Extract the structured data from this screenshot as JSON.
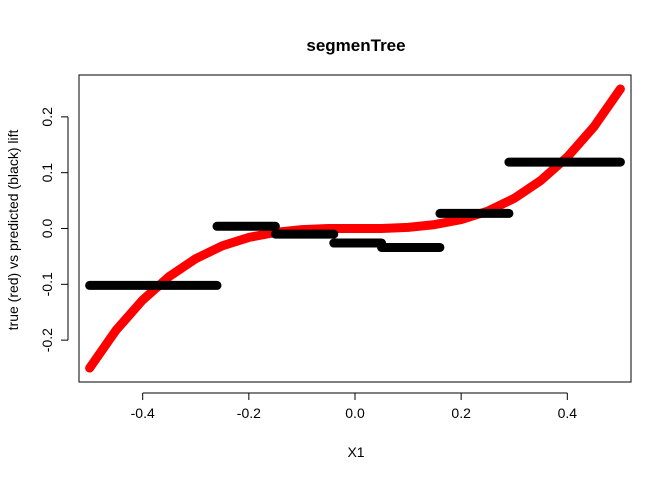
{
  "chart_data": {
    "type": "line",
    "title": "segmenTree",
    "xlabel": "X1",
    "ylabel": "true (red) vs predicted (black) lift",
    "xlim": [
      -0.52,
      0.52
    ],
    "ylim": [
      -0.275,
      0.275
    ],
    "x_ticks": [
      -0.4,
      -0.2,
      0.0,
      0.2,
      0.4
    ],
    "x_tick_labels": [
      "-0.4",
      "-0.2",
      "0.0",
      "0.2",
      "0.4"
    ],
    "y_ticks": [
      -0.2,
      -0.1,
      0.0,
      0.1,
      0.2
    ],
    "y_tick_labels": [
      "-0.2",
      "-0.1",
      "0.0",
      "0.1",
      "0.2"
    ],
    "grid": false,
    "legend": "none",
    "series": [
      {
        "color": "#ff0000",
        "x": [
          -0.5,
          -0.45,
          -0.4,
          -0.35,
          -0.3,
          -0.25,
          -0.2,
          -0.15,
          -0.1,
          -0.05,
          0.0,
          0.05,
          0.1,
          0.15,
          0.2,
          0.25,
          0.3,
          0.35,
          0.4,
          0.45,
          0.5
        ],
        "y": [
          -0.25,
          -0.182,
          -0.128,
          -0.086,
          -0.054,
          -0.031,
          -0.016,
          -0.007,
          -0.002,
          0.0,
          0.0,
          0.0,
          0.002,
          0.007,
          0.016,
          0.031,
          0.054,
          0.086,
          0.128,
          0.182,
          0.25
        ]
      }
    ],
    "segments": [
      {
        "color": "#000000",
        "x_start": -0.5,
        "x_end": -0.26,
        "y": -0.102
      },
      {
        "color": "#000000",
        "x_start": -0.26,
        "x_end": -0.15,
        "y": 0.004
      },
      {
        "color": "#000000",
        "x_start": -0.15,
        "x_end": -0.04,
        "y": -0.01
      },
      {
        "color": "#000000",
        "x_start": -0.04,
        "x_end": 0.05,
        "y": -0.026
      },
      {
        "color": "#000000",
        "x_start": 0.05,
        "x_end": 0.16,
        "y": -0.034
      },
      {
        "color": "#000000",
        "x_start": 0.16,
        "x_end": 0.29,
        "y": 0.027
      },
      {
        "color": "#000000",
        "x_start": 0.29,
        "x_end": 0.5,
        "y": 0.119
      }
    ]
  }
}
